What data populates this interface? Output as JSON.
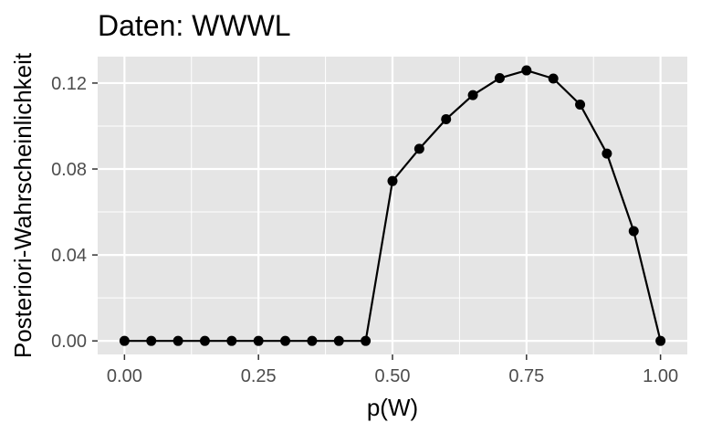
{
  "chart_data": {
    "type": "line",
    "title": "Daten: WWWL",
    "xlabel": "p(W)",
    "ylabel": "Posteriori-Wahrscheinlichkeit",
    "xlim": [
      -0.05,
      1.05
    ],
    "ylim": [
      -0.0063,
      0.1323
    ],
    "x_ticks": [
      "0.00",
      "0.25",
      "0.50",
      "0.75",
      "1.00"
    ],
    "y_ticks": [
      "0.00",
      "0.04",
      "0.08",
      "0.12"
    ],
    "grid": true,
    "background": "#e5e5e5",
    "grid_color": "#ffffff",
    "line_color": "#000000",
    "point_color": "#000000",
    "series": [
      {
        "x": [
          0.0,
          0.05,
          0.1,
          0.15,
          0.2,
          0.25,
          0.3,
          0.35,
          0.4,
          0.45,
          0.5,
          0.55,
          0.6,
          0.65,
          0.7,
          0.75,
          0.8,
          0.85,
          0.9,
          0.95,
          1.0
        ],
        "y": [
          0.0,
          0.0,
          0.0,
          0.0,
          0.0,
          0.0,
          0.0,
          0.0,
          0.0,
          0.0,
          0.0744,
          0.0894,
          0.1032,
          0.1144,
          0.1223,
          0.1259,
          0.1221,
          0.11,
          0.0872,
          0.0511,
          0.0
        ]
      }
    ]
  }
}
